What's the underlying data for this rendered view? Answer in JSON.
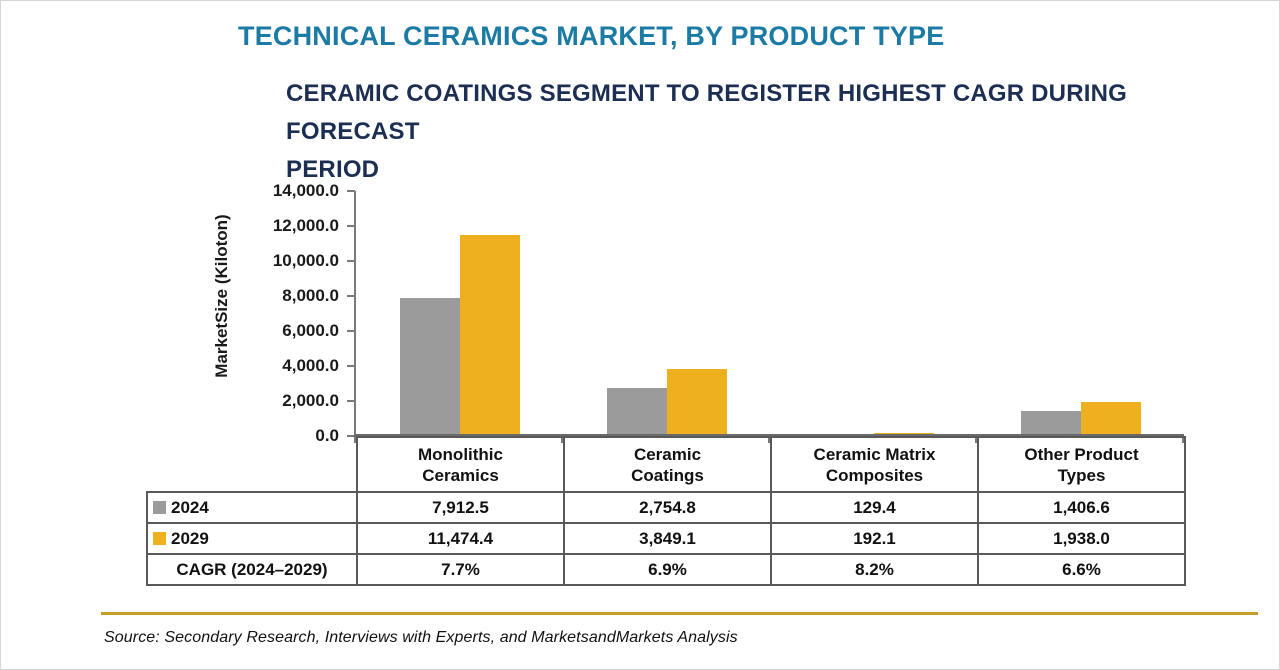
{
  "page": {
    "title": "TECHNICAL CERAMICS MARKET, BY PRODUCT TYPE",
    "subtitle": "CERAMIC COATINGS SEGMENT TO REGISTER HIGHEST CAGR DURING FORECAST\nPERIOD",
    "source_note": "Source: Secondary Research, Interviews with Experts, and MarketsandMarkets Analysis"
  },
  "chart_data": {
    "type": "bar",
    "title": "TECHNICAL CERAMICS MARKET, BY PRODUCT TYPE",
    "subtitle": "CERAMIC COATINGS SEGMENT TO REGISTER HIGHEST CAGR DURING FORECAST PERIOD",
    "xlabel": "",
    "ylabel": "MarketSize (Kiloton)",
    "ylim": [
      0,
      14000
    ],
    "ytick_step": 2000,
    "ytick_labels": [
      "14,000.0",
      "12,000.0",
      "10,000.0",
      "8,000.0",
      "6,000.0",
      "4,000.0",
      "2,000.0",
      "0.0"
    ],
    "grid": false,
    "legend_position": "table-left-column",
    "categories": [
      "Monolithic\nCeramics",
      "Ceramic\nCoatings",
      "Ceramic Matrix\nComposites",
      "Other Product\nTypes"
    ],
    "series": [
      {
        "name": "2024",
        "color": "#9B9B9B",
        "values": [
          7912.5,
          2754.8,
          129.4,
          1406.6
        ],
        "display": [
          "7,912.5",
          "2,754.8",
          "129.4",
          "1,406.6"
        ]
      },
      {
        "name": "2029",
        "color": "#EEB01E",
        "values": [
          11474.4,
          3849.1,
          192.1,
          1938.0
        ],
        "display": [
          "11,474.4",
          "3,849.1",
          "192.1",
          "1,938.0"
        ]
      }
    ],
    "cagr": {
      "label": "CAGR (2024–2029)",
      "display": [
        "7.7%",
        "6.9%",
        "8.2%",
        "6.6%"
      ]
    }
  },
  "colors": {
    "title": "#1B7BA4",
    "subtitle": "#1C2E52",
    "bar_2024": "#9B9B9B",
    "bar_2029": "#EEB01E",
    "axis": "#7A7A7A",
    "table_border": "#595959",
    "divider_gold": "#C5A028"
  }
}
